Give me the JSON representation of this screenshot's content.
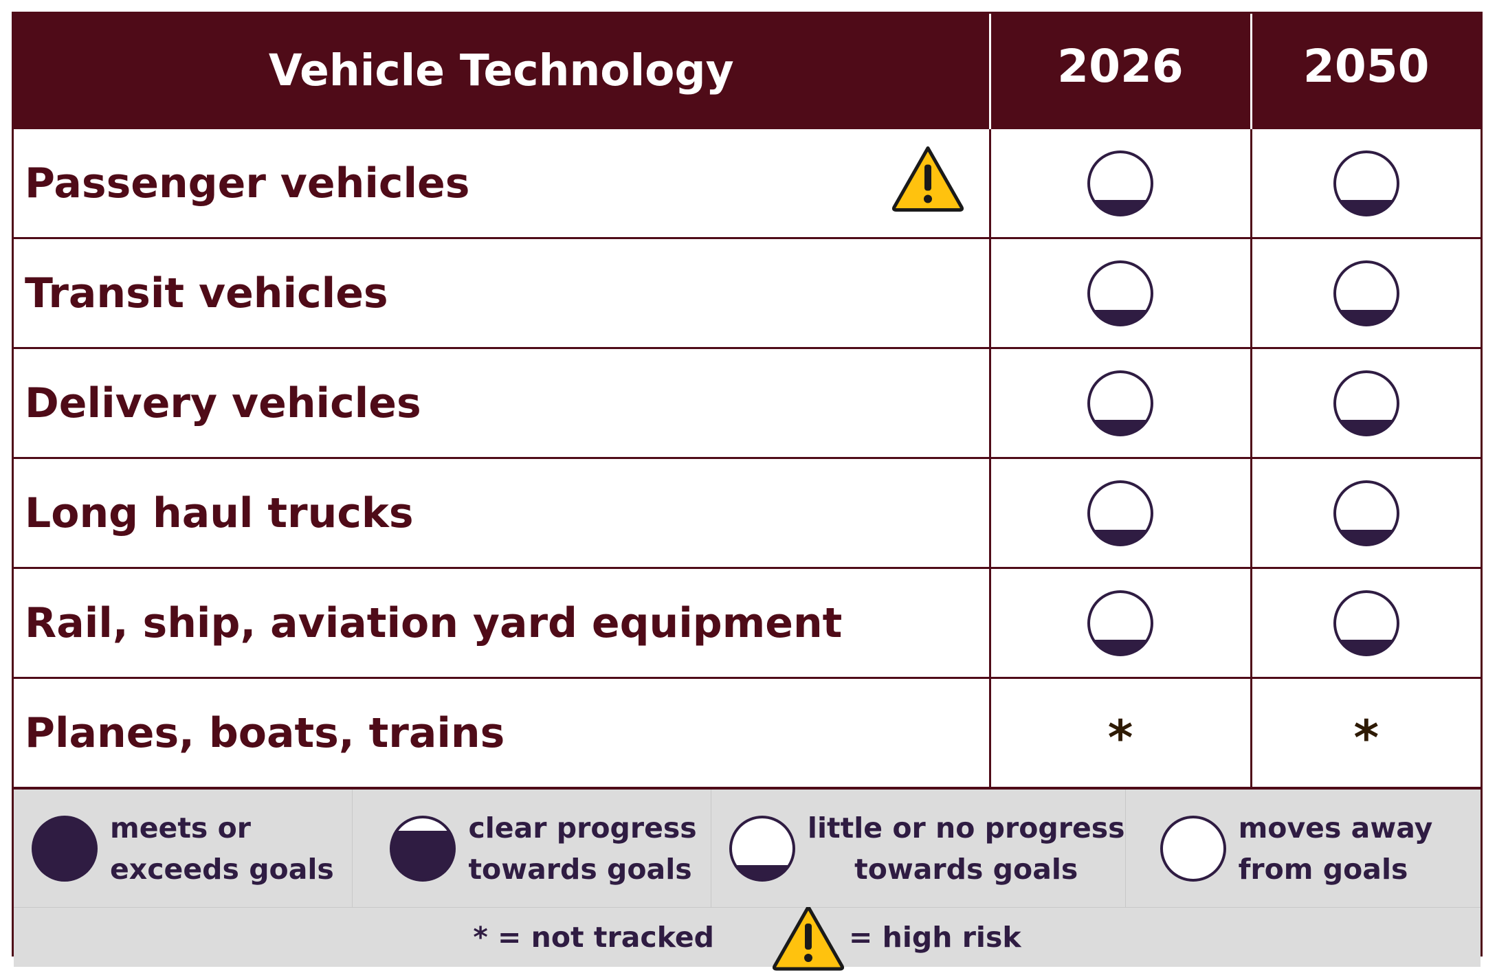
{
  "header": {
    "title": "Vehicle Technology",
    "year1": "2026",
    "year2": "2050"
  },
  "rows": [
    {
      "label": "Passenger vehicles",
      "high_risk": true,
      "y2026": "little-progress",
      "y2050": "little-progress"
    },
    {
      "label": "Transit vehicles",
      "high_risk": false,
      "y2026": "little-progress",
      "y2050": "little-progress"
    },
    {
      "label": "Delivery vehicles",
      "high_risk": false,
      "y2026": "little-progress",
      "y2050": "little-progress"
    },
    {
      "label": "Long haul trucks",
      "high_risk": false,
      "y2026": "little-progress",
      "y2050": "little-progress"
    },
    {
      "label": "Rail, ship, aviation yard equipment",
      "high_risk": false,
      "y2026": "little-progress",
      "y2050": "little-progress"
    },
    {
      "label": "Planes, boats, trains",
      "high_risk": false,
      "y2026": "not-tracked",
      "y2050": "not-tracked"
    }
  ],
  "not_tracked_symbol": "*",
  "legend": {
    "meets": {
      "line1": "meets or",
      "line2": "exceeds goals"
    },
    "clear": {
      "line1": "clear progress",
      "line2": "towards goals"
    },
    "little": {
      "line1": "little or no progress",
      "line2": "towards goals"
    },
    "away": {
      "line1": "moves away",
      "line2": "from goals"
    },
    "not_tracked_text": "* = not tracked",
    "high_risk_text": "= high risk"
  },
  "colors": {
    "header_bg": "#4f0b18",
    "label_text": "#4f0b18",
    "circle_fill": "#2f1c42",
    "legend_bg": "#dcdcdc",
    "warning_yellow": "#ffc20e"
  }
}
